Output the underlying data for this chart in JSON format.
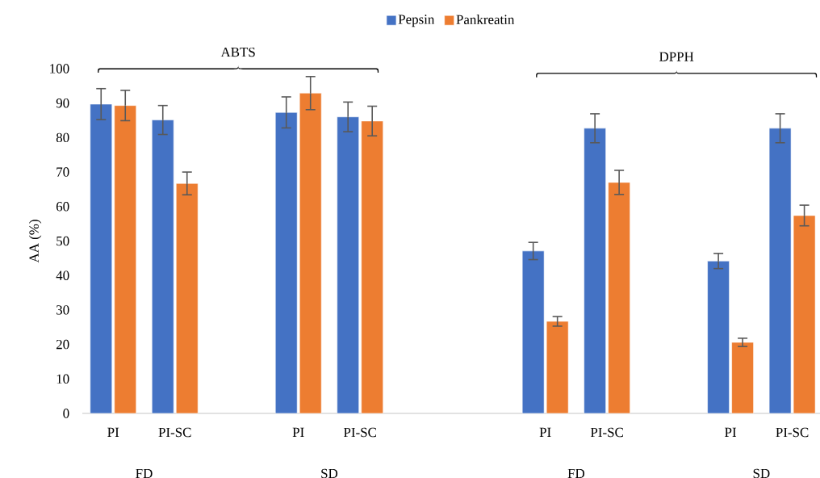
{
  "chart_data": {
    "type": "bar",
    "ylabel": "AA (%)",
    "categories": [
      "PI",
      "PI-SC",
      null,
      "PI",
      "PI-SC",
      null,
      null,
      "PI",
      "PI-SC",
      null,
      "PI",
      "PI-SC"
    ],
    "series": [
      {
        "name": "Pepsin",
        "color": "#4472c4",
        "values": [
          89.7,
          85.1,
          null,
          87.3,
          86,
          null,
          null,
          47.1,
          82.7,
          null,
          44.2,
          82.7
        ],
        "errors": [
          4.5,
          4.2,
          null,
          4.5,
          4.3,
          null,
          null,
          2.5,
          4.2,
          null,
          2.2,
          4.2
        ]
      },
      {
        "name": "Pankreatin",
        "color": "#ed7d31",
        "values": [
          89.3,
          66.7,
          null,
          92.9,
          84.8,
          null,
          null,
          26.7,
          67,
          null,
          20.6,
          57.4
        ],
        "errors": [
          4.4,
          3.3,
          null,
          4.8,
          4.3,
          null,
          null,
          1.4,
          3.5,
          null,
          1.2,
          3
        ]
      }
    ],
    "ylim": [
      0,
      100
    ],
    "yticks": [
      0,
      10,
      20,
      30,
      40,
      50,
      60,
      70,
      80,
      90,
      100
    ],
    "grid": false,
    "legend": "top",
    "annotations": [
      "FD",
      "SD",
      "FD",
      "SD",
      "ABTS",
      "DPPH"
    ]
  }
}
